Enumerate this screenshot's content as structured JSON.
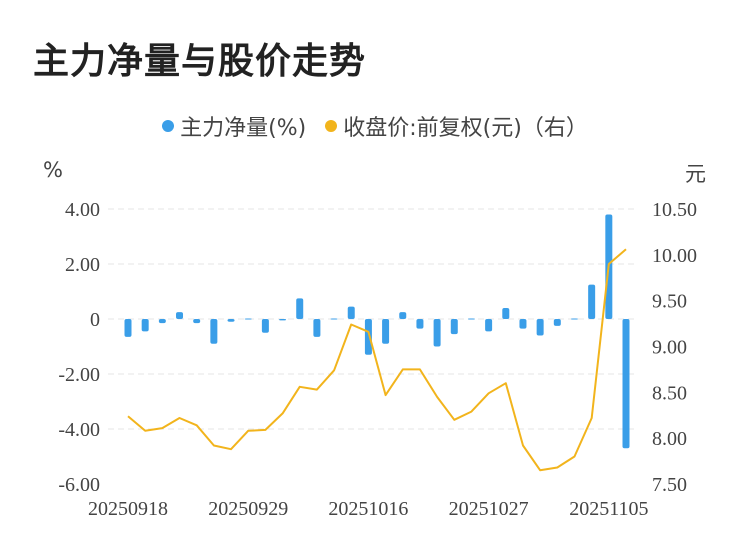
{
  "title": "主力净量与股价走势",
  "colors": {
    "bar": "#3a9ee8",
    "line": "#f2b41c",
    "grid": "#e6e6e6"
  },
  "chart_data": {
    "type": "bar+line",
    "legend": [
      {
        "label": "主力净量(%)",
        "color": "#3a9ee8"
      },
      {
        "label": "收盘价:前复权(元)（右）",
        "color": "#f2b41c"
      }
    ],
    "legend_position": "top-center",
    "ylabel_left": "%",
    "ylabel_right": "元",
    "ylim_left": [
      -6,
      4
    ],
    "ylim_right": [
      7.5,
      10.5
    ],
    "yticks_left": [
      "4.00",
      "2.00",
      "0",
      "-2.00",
      "-4.00",
      "-6.00"
    ],
    "yticks_right": [
      "10.50",
      "10.00",
      "9.50",
      "9.00",
      "8.50",
      "8.00",
      "7.50"
    ],
    "xtick_labels": [
      "20250918",
      "20250929",
      "20251016",
      "20251027",
      "20251105"
    ],
    "xtick_index": [
      0,
      7,
      14,
      21,
      28
    ],
    "grid": true,
    "series": [
      {
        "name": "主力净量(%)",
        "type": "bar",
        "values": [
          -0.65,
          -0.45,
          -0.15,
          0.25,
          -0.15,
          -0.9,
          -0.1,
          0.03,
          -0.5,
          -0.05,
          0.75,
          -0.65,
          0.0,
          0.45,
          -1.3,
          -0.9,
          0.25,
          -0.35,
          -1.0,
          -0.55,
          0.03,
          -0.45,
          0.4,
          -0.35,
          -0.6,
          -0.25,
          0.03,
          1.25,
          3.8,
          -4.7
        ]
      },
      {
        "name": "收盘价:前复权(元)（右）",
        "type": "line",
        "values": [
          8.24,
          8.08,
          8.11,
          8.22,
          8.14,
          7.92,
          7.88,
          8.08,
          8.09,
          8.27,
          8.56,
          8.53,
          8.74,
          9.24,
          9.16,
          8.47,
          8.75,
          8.75,
          8.45,
          8.2,
          8.29,
          8.49,
          8.6,
          7.92,
          7.65,
          7.68,
          7.8,
          8.22,
          9.9,
          10.06
        ]
      }
    ]
  }
}
